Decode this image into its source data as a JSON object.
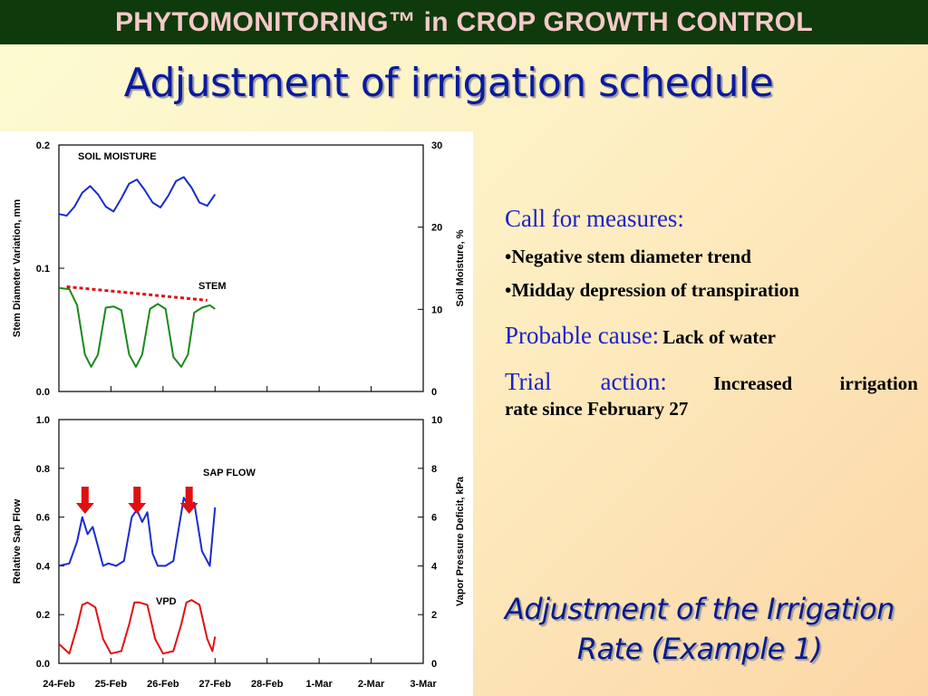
{
  "header": {
    "title": "PHYTOMONITORING™ in CROP GROWTH CONTROL"
  },
  "slide": {
    "title": "Adjustment of irrigation schedule"
  },
  "right_panel": {
    "call_heading": "Call for measures:",
    "bullets": [
      "•Negative stem diameter trend",
      "•Midday depression of transpiration"
    ],
    "cause_label": "Probable cause:",
    "cause_text": "Lack of water",
    "trial_label": "Trial  action:",
    "trial_text_line1": "Increased  irrigation",
    "trial_text_line2": "rate since February 27"
  },
  "footer": {
    "line1": "Adjustment of the Irrigation",
    "line2": "Rate (Example 1)"
  },
  "colors": {
    "header_bg": "#0f3a0c",
    "header_text": "#f6c9c9",
    "title_blue": "#0a1aa0",
    "soil_moisture": "#1a2bd0",
    "stem": "#1a8a1a",
    "trend": "#e01010",
    "sap_flow": "#1a2bd0",
    "vpd": "#e01010",
    "arrow": "#e01010"
  },
  "chart_data": [
    {
      "type": "line",
      "panel": "top",
      "x": [
        "24-Feb",
        "25-Feb",
        "26-Feb",
        "27-Feb",
        "28-Feb",
        "1-Mar",
        "2-Mar",
        "3-Mar"
      ],
      "ylabel_left": "Stem Diameter Variation, mm",
      "ylabel_right": "Soil Moisture, %",
      "yticks_left": [
        "0.2",
        "0.1",
        "0.0"
      ],
      "yticks_right": [
        "30",
        "20",
        "10",
        "0"
      ],
      "ylim_left": [
        0,
        0.2
      ],
      "ylim_right": [
        0,
        30
      ],
      "series": [
        {
          "name": "SOIL MOISTURE",
          "axis": "right",
          "x": [
            0,
            0.15,
            0.3,
            0.45,
            0.6,
            0.75,
            0.9,
            1.05,
            1.2,
            1.35,
            1.5,
            1.65,
            1.8,
            1.95,
            2.1,
            2.25,
            2.4,
            2.55,
            2.7,
            2.85,
            3.0
          ],
          "values": [
            21.6,
            21.4,
            22.5,
            24.2,
            25.0,
            24.0,
            22.5,
            21.9,
            23.5,
            25.3,
            25.8,
            24.5,
            23.0,
            22.4,
            23.8,
            25.6,
            26.1,
            24.8,
            23.0,
            22.6,
            24.0
          ]
        },
        {
          "name": "STEM",
          "axis": "left",
          "x": [
            0,
            0.2,
            0.35,
            0.5,
            0.62,
            0.75,
            0.9,
            1.05,
            1.2,
            1.35,
            1.48,
            1.6,
            1.75,
            1.9,
            2.05,
            2.2,
            2.35,
            2.48,
            2.6,
            2.75,
            2.9,
            3.0
          ],
          "values": [
            0.084,
            0.083,
            0.07,
            0.03,
            0.02,
            0.03,
            0.068,
            0.069,
            0.066,
            0.03,
            0.02,
            0.03,
            0.067,
            0.071,
            0.067,
            0.028,
            0.02,
            0.03,
            0.064,
            0.068,
            0.07,
            0.067
          ]
        },
        {
          "name": "",
          "axis": "left",
          "x": [
            0.15,
            2.85
          ],
          "values": [
            0.085,
            0.074
          ]
        }
      ],
      "annotations": [
        "SOIL MOISTURE",
        "STEM"
      ]
    },
    {
      "type": "line",
      "panel": "bottom",
      "x": [
        "24-Feb",
        "25-Feb",
        "26-Feb",
        "27-Feb",
        "28-Feb",
        "1-Mar",
        "2-Mar",
        "3-Mar"
      ],
      "ylabel_left": "Relative Sap Flow",
      "ylabel_right": "Vapor Pressure Deficit, kPa",
      "yticks_left": [
        "1.0",
        "0.8",
        "0.6",
        "0.4",
        "0.2",
        "0.0"
      ],
      "yticks_right": [
        "10",
        "8",
        "6",
        "4",
        "2",
        "0"
      ],
      "ylim_left": [
        0,
        1.0
      ],
      "ylim_right": [
        0,
        10
      ],
      "series": [
        {
          "name": "SAP FLOW",
          "axis": "left",
          "x": [
            0,
            0.2,
            0.35,
            0.45,
            0.55,
            0.65,
            0.75,
            0.85,
            0.95,
            1.1,
            1.25,
            1.4,
            1.5,
            1.6,
            1.7,
            1.8,
            1.9,
            2.05,
            2.2,
            2.4,
            2.5,
            2.6,
            2.75,
            2.9,
            3.0
          ],
          "values": [
            0.4,
            0.41,
            0.5,
            0.6,
            0.53,
            0.56,
            0.48,
            0.4,
            0.41,
            0.4,
            0.42,
            0.6,
            0.63,
            0.58,
            0.62,
            0.45,
            0.4,
            0.4,
            0.42,
            0.68,
            0.64,
            0.66,
            0.46,
            0.4,
            0.64
          ]
        },
        {
          "name": "VPD",
          "axis": "right",
          "x": [
            0,
            0.2,
            0.35,
            0.45,
            0.55,
            0.7,
            0.85,
            1.0,
            1.2,
            1.35,
            1.45,
            1.55,
            1.7,
            1.85,
            2.0,
            2.2,
            2.35,
            2.45,
            2.55,
            2.7,
            2.85,
            2.95,
            3.0
          ],
          "values": [
            0.8,
            0.4,
            1.5,
            2.4,
            2.5,
            2.3,
            1.0,
            0.4,
            0.5,
            1.6,
            2.5,
            2.5,
            2.4,
            1.0,
            0.4,
            0.5,
            1.6,
            2.5,
            2.6,
            2.4,
            1.0,
            0.5,
            1.1
          ]
        }
      ],
      "annotations": [
        "SAP FLOW",
        "VPD"
      ],
      "arrows_at_x": [
        0.45,
        1.45,
        2.45
      ]
    }
  ]
}
